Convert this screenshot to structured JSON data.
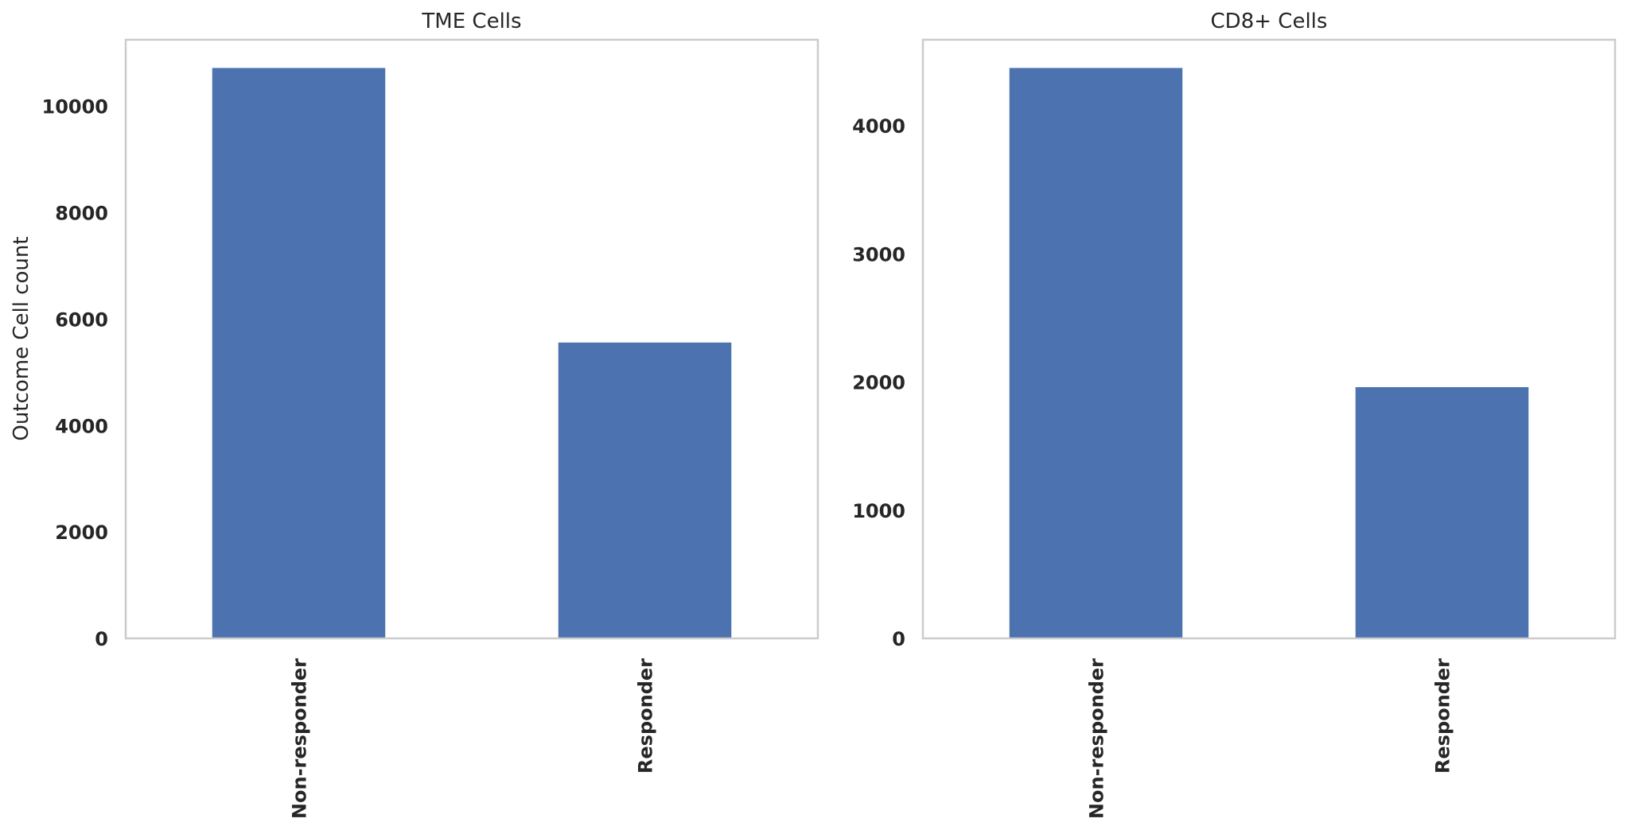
{
  "chart_data": [
    {
      "type": "bar",
      "title": "TME Cells",
      "ylabel": "Outcome  Cell count",
      "xlabel": "",
      "categories": [
        "Non-responder",
        "Responder"
      ],
      "values": [
        10720,
        5560
      ],
      "ylim": [
        0,
        11250
      ],
      "yticks": [
        0,
        2000,
        4000,
        6000,
        8000,
        10000
      ],
      "bar_color": "#4c72b0",
      "grid": false
    },
    {
      "type": "bar",
      "title": "CD8+ Cells",
      "ylabel": "",
      "xlabel": "",
      "categories": [
        "Non-responder",
        "Responder"
      ],
      "values": [
        4450,
        1960
      ],
      "ylim": [
        0,
        4670
      ],
      "yticks": [
        0,
        1000,
        2000,
        3000,
        4000
      ],
      "bar_color": "#4c72b0",
      "grid": false
    }
  ]
}
